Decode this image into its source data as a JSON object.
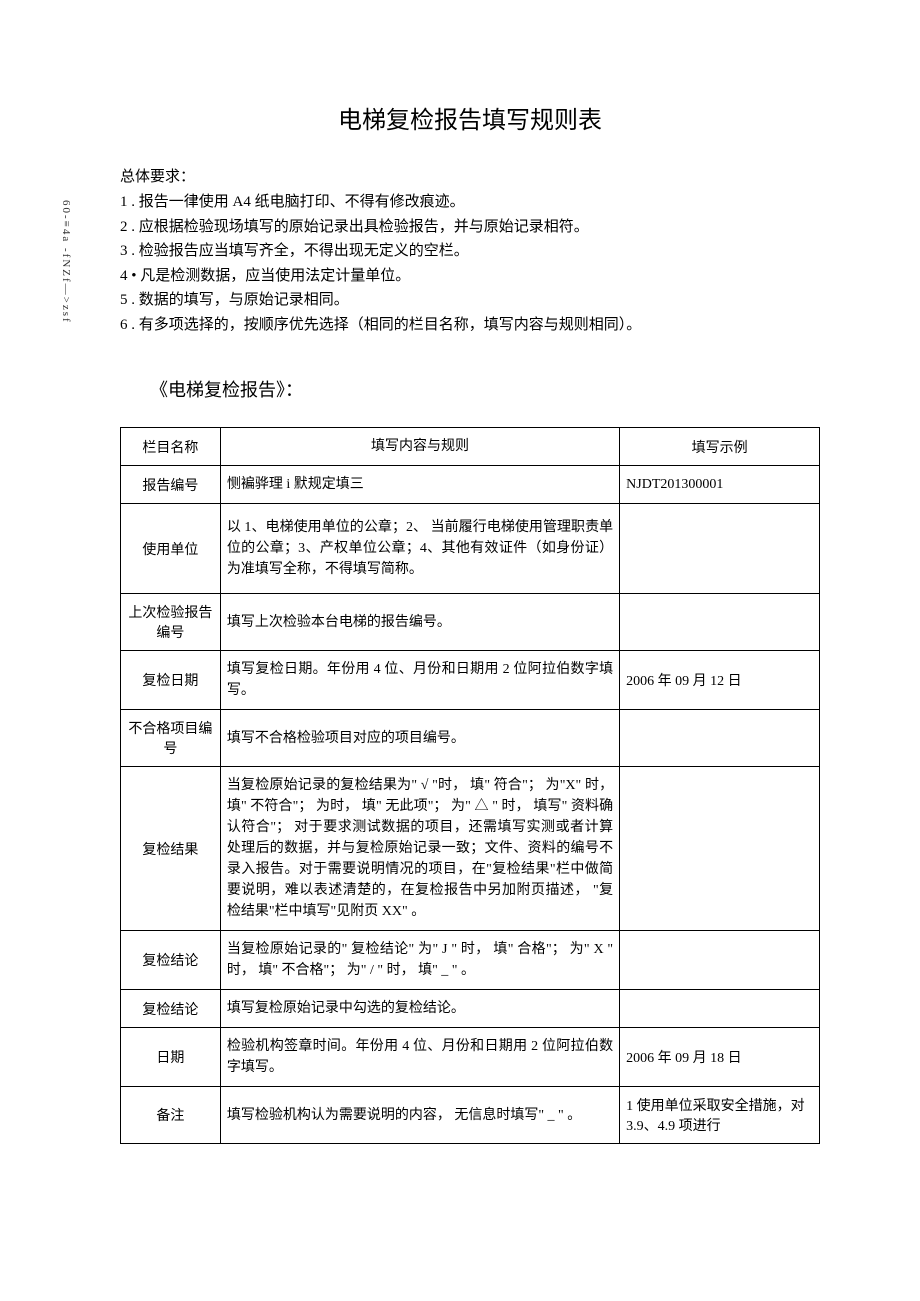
{
  "vertical_label": "60-≡4a -fNZf—>zsf",
  "title": "电梯复检报告填写规则表",
  "requirements_header": "总体要求：",
  "requirements": [
    "1 . 报告一律使用 A4 纸电脑打印、不得有修改痕迹。",
    "2 . 应根据检验现场填写的原始记录出具检验报告，并与原始记录相符。",
    "3 . 检验报告应当填写齐全，不得出现无定义的空栏。",
    "4 • 凡是检测数据，应当使用法定计量单位。",
    "5 . 数据的填写，与原始记录相同。",
    "6 . 有多项选择的，按顺序优先选择（相同的栏目名称，填写内容与规则相同）。"
  ],
  "subtitle": "《电梯复检报告》：",
  "table": {
    "headers": {
      "name": "栏目名称",
      "rule": "填写内容与规则",
      "example": "填写示例"
    },
    "rows": [
      {
        "name": "报告编号",
        "rule": "恻褊骅理 i 默规定填三",
        "example": "NJDT201300001"
      },
      {
        "name": "使用单位",
        "rule": "以 1、电梯使用单位的公章；2、 当前履行电梯使用管理职责单位的公章；3、产权单位公章；4、其他有效证件（如身份证）为准填写全称，不得填写简称。",
        "example": ""
      },
      {
        "name": "上次检验报告编号",
        "rule": "填写上次检验本台电梯的报告编号。",
        "example": ""
      },
      {
        "name": "复检日期",
        "rule": "填写复检日期。年份用 4 位、月份和日期用 2 位阿拉伯数字填写。",
        "example": "2006 年 09 月 12 日"
      },
      {
        "name": "不合格项目编号",
        "rule": "填写不合格检验项目对应的项目编号。",
        "example": ""
      },
      {
        "name": "复检结果",
        "rule": "当复检原始记录的复检结果为\" √ \"时， 填\" 符合\"； 为\"X\" 时， 填\" 不符合\"； 为时， 填\" 无此项\"； 为\" △ \" 时， 填写\" 资料确认符合\"； 对于要求测试数据的项目，还需填写实测或者计算处理后的数据，并与复检原始记录一致；文件、资料的编号不录入报告。对于需要说明情况的项目，在\"复检结果\"栏中做简要说明，难以表述清楚的，在复检报告中另加附页描述， \"复检结果\"栏中填写\"见附页 XX\" 。",
        "example": ""
      },
      {
        "name": "复检结论",
        "rule": "当复检原始记录的\" 复检结论\" 为\" J \" 时， 填\" 合格\"； 为\" X \" 时， 填\" 不合格\"； 为\" / \" 时， 填\" _ \" 。",
        "example": ""
      },
      {
        "name": "复检结论",
        "rule": "填写复检原始记录中勾选的复检结论。",
        "example": ""
      },
      {
        "name": "日期",
        "rule": "检验机构签章时间。年份用 4 位、月份和日期用 2 位阿拉伯数字填写。",
        "example": "2006 年 09 月 18 日"
      },
      {
        "name": "备注",
        "rule": "填写检验机构认为需要说明的内容， 无信息时填写\" _ \" 。",
        "example": "1 使用单位采取安全措施，对 3.9、4.9 项进行"
      }
    ]
  }
}
